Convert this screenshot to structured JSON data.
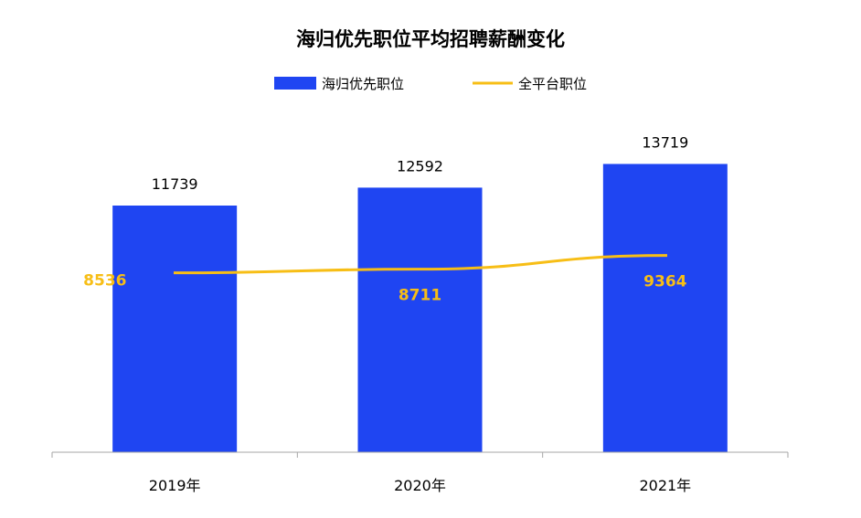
{
  "chart_data": {
    "type": "bar",
    "title": "海归优先职位平均招聘薪酬变化",
    "categories": [
      "2019年",
      "2020年",
      "2021年"
    ],
    "series": [
      {
        "name": "海归优先职位",
        "kind": "bar",
        "color": "#1f45f2",
        "values": [
          11739,
          12592,
          13719
        ]
      },
      {
        "name": "全平台职位",
        "kind": "line",
        "color": "#f7be16",
        "values": [
          8536,
          8711,
          9364
        ]
      }
    ],
    "ylim": [
      0,
      15000
    ],
    "grid": false,
    "legend": "top-center",
    "xlabel": "",
    "ylabel": ""
  }
}
